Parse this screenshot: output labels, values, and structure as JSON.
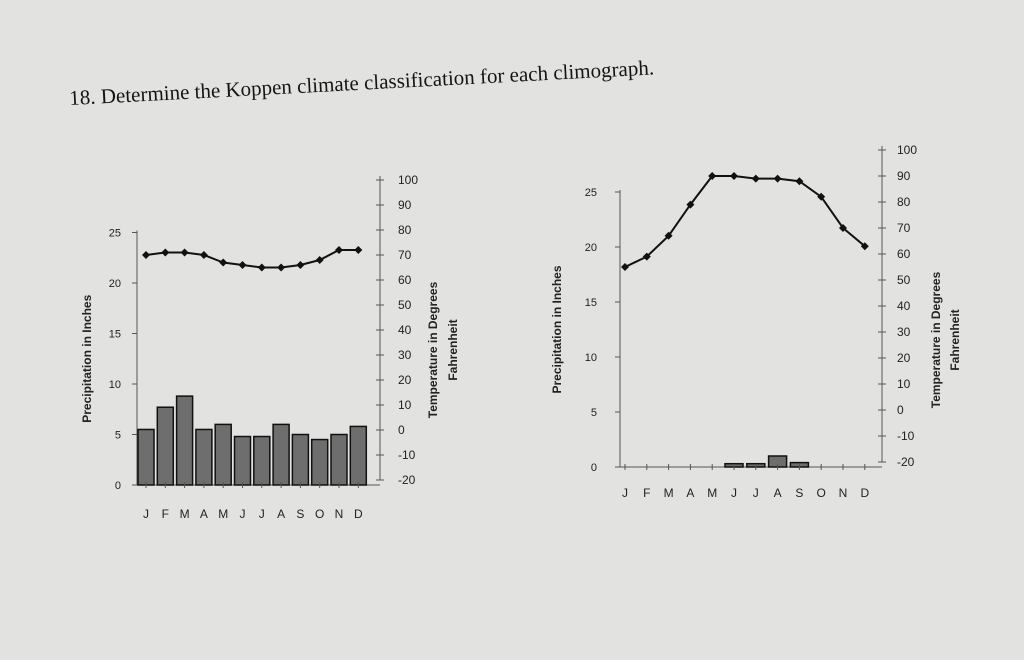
{
  "question": {
    "text": "18. Determine the Koppen climate classification for each climograph."
  },
  "chart_data": [
    {
      "type": "bar+line",
      "categories": [
        "J",
        "F",
        "M",
        "A",
        "M",
        "J",
        "J",
        "A",
        "S",
        "O",
        "N",
        "D"
      ],
      "precip_axis": {
        "label": "Precipitation in Inches",
        "ylim": [
          0,
          25
        ],
        "ticks": [
          "0",
          "5",
          "10",
          "15",
          "20",
          "25"
        ]
      },
      "temp_axis": {
        "label_line1": "Temperature in Degrees",
        "label_line2": "Fahrenheit",
        "ylim": [
          -20,
          100
        ],
        "ticks": [
          "-20",
          "-10",
          "0",
          "10",
          "20",
          "30",
          "40",
          "50",
          "60",
          "70",
          "80",
          "90",
          "100"
        ]
      },
      "precipitation": [
        5.5,
        7.7,
        8.8,
        5.5,
        6.0,
        4.8,
        4.8,
        6.0,
        5.0,
        4.5,
        5.0,
        5.8
      ],
      "temperature": [
        70,
        71,
        71,
        70,
        67,
        66,
        65,
        65,
        66,
        68,
        72,
        72
      ]
    },
    {
      "type": "bar+line",
      "categories": [
        "J",
        "F",
        "M",
        "A",
        "M",
        "J",
        "J",
        "A",
        "S",
        "O",
        "N",
        "D"
      ],
      "precip_axis": {
        "label": "Precipitation in Inches",
        "ylim": [
          0,
          25
        ],
        "ticks": [
          "0",
          "5",
          "10",
          "15",
          "20",
          "25"
        ]
      },
      "temp_axis": {
        "label_line1": "Temperature in Degrees",
        "label_line2": "Fahrenheit",
        "ylim": [
          -20,
          100
        ],
        "ticks": [
          "-20",
          "-10",
          "0",
          "10",
          "20",
          "30",
          "40",
          "50",
          "60",
          "70",
          "80",
          "90",
          "100"
        ]
      },
      "precipitation": [
        0,
        0,
        0,
        0,
        0,
        0.3,
        0.3,
        1.0,
        0.4,
        0,
        0,
        0
      ],
      "temperature": [
        55,
        59,
        67,
        79,
        90,
        90,
        89,
        89,
        88,
        82,
        70,
        63
      ]
    }
  ]
}
